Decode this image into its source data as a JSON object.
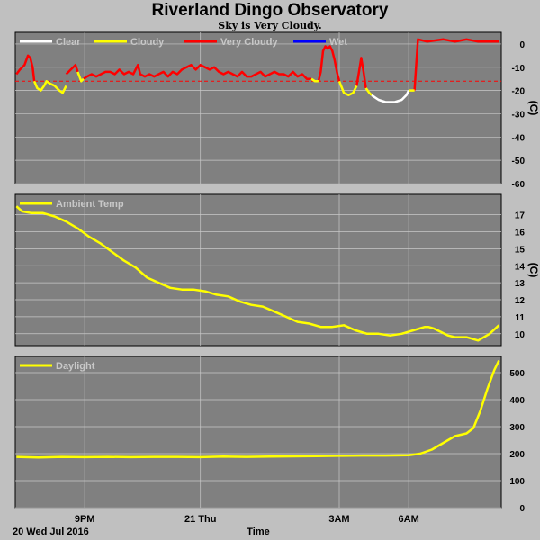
{
  "header": {
    "title": "Riverland Dingo Observatory",
    "subtitle": "Sky is Very Cloudy."
  },
  "footer": {
    "date_label": "20 Wed Jul 2016",
    "x_axis_label": "Time"
  },
  "colors": {
    "background": "#c0c0c0",
    "plot_background": "#808080",
    "grid": "#c8c8c8",
    "clear": "#ffffff",
    "cloudy": "#ffff00",
    "very_cloudy": "#ff0000",
    "wet": "#0000ff"
  },
  "chart_data": [
    {
      "type": "line",
      "name": "sky",
      "legend": [
        "Clear",
        "Cloudy",
        "Very Cloudy",
        "Wet"
      ],
      "ylabel": "(C)",
      "ylim": [
        -60,
        5
      ],
      "yticks": [
        "0",
        "-10",
        "-20",
        "-30",
        "-40",
        "-50",
        "-60"
      ],
      "xticks": [
        "9PM",
        "21 Thu",
        "3AM",
        "6AM"
      ],
      "threshold": -16,
      "series": [
        {
          "name": "Very Cloudy",
          "color": "very_cloudy",
          "segments": [
            [
              [
                0.05,
                -13
              ],
              [
                0.2,
                -11
              ],
              [
                0.4,
                -9
              ],
              [
                0.55,
                -5
              ],
              [
                0.65,
                -6
              ],
              [
                0.75,
                -10
              ],
              [
                0.82,
                -16
              ]
            ],
            [
              [
                2.2,
                -13
              ],
              [
                2.4,
                -11
              ],
              [
                2.6,
                -9
              ],
              [
                2.7,
                -12
              ]
            ],
            [
              [
                2.95,
                -15
              ],
              [
                3.1,
                -14
              ],
              [
                3.3,
                -13
              ],
              [
                3.5,
                -14
              ],
              [
                3.7,
                -13
              ],
              [
                3.9,
                -12
              ],
              [
                4.1,
                -12
              ],
              [
                4.3,
                -13
              ],
              [
                4.5,
                -11
              ],
              [
                4.7,
                -13
              ],
              [
                4.9,
                -12
              ],
              [
                5.1,
                -13
              ],
              [
                5.3,
                -9
              ],
              [
                5.4,
                -13
              ],
              [
                5.6,
                -14
              ],
              [
                5.8,
                -13
              ],
              [
                6.0,
                -14
              ],
              [
                6.2,
                -13
              ],
              [
                6.4,
                -12
              ],
              [
                6.6,
                -14
              ],
              [
                6.8,
                -12
              ],
              [
                7.0,
                -13
              ],
              [
                7.2,
                -11
              ],
              [
                7.4,
                -10
              ],
              [
                7.6,
                -9
              ],
              [
                7.8,
                -11
              ],
              [
                8.0,
                -9
              ],
              [
                8.2,
                -10
              ],
              [
                8.4,
                -11
              ],
              [
                8.6,
                -10
              ],
              [
                8.8,
                -12
              ],
              [
                9.0,
                -13
              ],
              [
                9.2,
                -12
              ],
              [
                9.4,
                -13
              ],
              [
                9.6,
                -14
              ],
              [
                9.8,
                -12
              ],
              [
                10.0,
                -14
              ],
              [
                10.2,
                -14
              ],
              [
                10.4,
                -13
              ],
              [
                10.6,
                -12
              ],
              [
                10.8,
                -14
              ],
              [
                11.0,
                -13
              ],
              [
                11.2,
                -12
              ],
              [
                11.4,
                -13
              ],
              [
                11.6,
                -13
              ],
              [
                11.8,
                -14
              ],
              [
                12.0,
                -12
              ],
              [
                12.2,
                -14
              ],
              [
                12.4,
                -13
              ],
              [
                12.6,
                -15
              ],
              [
                12.8,
                -15
              ]
            ],
            [
              [
                13.1,
                -16
              ],
              [
                13.2,
                -12
              ],
              [
                13.3,
                -3
              ],
              [
                13.4,
                -1
              ],
              [
                13.5,
                -2
              ],
              [
                13.6,
                -1
              ],
              [
                13.7,
                -3
              ],
              [
                13.8,
                -7
              ],
              [
                13.9,
                -12
              ],
              [
                14.0,
                -16
              ]
            ],
            [
              [
                14.75,
                -18
              ],
              [
                14.85,
                -12
              ],
              [
                14.95,
                -6
              ],
              [
                15.05,
                -12
              ],
              [
                15.15,
                -19
              ]
            ],
            [
              [
                17.25,
                -20
              ],
              [
                17.4,
                2
              ],
              [
                17.8,
                1
              ],
              [
                18.5,
                2
              ],
              [
                19.0,
                1
              ],
              [
                19.5,
                2
              ],
              [
                20.0,
                1
              ],
              [
                20.5,
                1
              ],
              [
                20.9,
                1
              ]
            ]
          ]
        },
        {
          "name": "Cloudy",
          "color": "cloudy",
          "segments": [
            [
              [
                0.82,
                -16
              ],
              [
                0.95,
                -19
              ],
              [
                1.1,
                -20
              ],
              [
                1.25,
                -18
              ],
              [
                1.35,
                -16
              ],
              [
                1.5,
                -17
              ],
              [
                1.7,
                -18
              ],
              [
                1.9,
                -20
              ],
              [
                2.05,
                -21
              ],
              [
                2.2,
                -18
              ]
            ],
            [
              [
                2.7,
                -12
              ],
              [
                2.85,
                -16
              ],
              [
                2.95,
                -15
              ]
            ],
            [
              [
                12.8,
                -15
              ],
              [
                12.95,
                -16
              ],
              [
                13.1,
                -16
              ]
            ],
            [
              [
                14.0,
                -16
              ],
              [
                14.2,
                -21
              ],
              [
                14.4,
                -22
              ],
              [
                14.6,
                -21
              ],
              [
                14.75,
                -18
              ]
            ],
            [
              [
                15.15,
                -19
              ],
              [
                15.3,
                -21
              ],
              [
                15.4,
                -22
              ]
            ],
            [
              [
                17.0,
                -20
              ],
              [
                17.25,
                -20
              ]
            ]
          ]
        },
        {
          "name": "Clear",
          "color": "clear",
          "segments": [
            [
              [
                15.4,
                -22
              ],
              [
                15.7,
                -24
              ],
              [
                16.0,
                -25
              ],
              [
                16.4,
                -25
              ],
              [
                16.7,
                -24
              ],
              [
                16.9,
                -22
              ],
              [
                17.0,
                -20
              ]
            ]
          ]
        }
      ]
    },
    {
      "type": "line",
      "name": "temperature",
      "legend": [
        "Ambient Temp"
      ],
      "ylabel": "(C)",
      "ylim": [
        9.3,
        18.2
      ],
      "yticks": [
        "17",
        "16",
        "15",
        "14",
        "13",
        "12",
        "11",
        "10"
      ],
      "xticks": [
        "9PM",
        "21 Thu",
        "3AM",
        "6AM"
      ],
      "series": [
        {
          "name": "Ambient Temp",
          "color": "cloudy",
          "x": [
            0.05,
            0.3,
            0.7,
            1.2,
            1.7,
            2.2,
            2.7,
            3.2,
            3.7,
            4.2,
            4.7,
            5.2,
            5.7,
            6.2,
            6.7,
            7.2,
            7.7,
            8.2,
            8.7,
            9.2,
            9.7,
            10.2,
            10.7,
            11.2,
            11.7,
            12.2,
            12.7,
            13.2,
            13.7,
            14.2,
            14.7,
            15.2,
            15.7,
            16.2,
            16.7,
            17.2,
            17.7,
            17.85,
            18.1,
            18.4,
            18.7,
            19.0,
            19.5,
            20.0,
            20.5,
            20.9
          ],
          "values": [
            17.5,
            17.2,
            17.1,
            17.1,
            16.9,
            16.6,
            16.2,
            15.7,
            15.3,
            14.8,
            14.3,
            13.9,
            13.3,
            13.0,
            12.7,
            12.6,
            12.6,
            12.5,
            12.3,
            12.2,
            11.9,
            11.7,
            11.6,
            11.3,
            11.0,
            10.7,
            10.6,
            10.4,
            10.4,
            10.5,
            10.2,
            10.0,
            10.0,
            9.9,
            10.0,
            10.2,
            10.4,
            10.4,
            10.3,
            10.1,
            9.9,
            9.8,
            9.8,
            9.6,
            10.0,
            10.5
          ]
        }
      ]
    },
    {
      "type": "line",
      "name": "daylight",
      "legend": [
        "Daylight"
      ],
      "ylabel": "",
      "ylim": [
        0,
        560
      ],
      "yticks": [
        "500",
        "400",
        "300",
        "200",
        "100",
        "0"
      ],
      "xticks": [
        "9PM",
        "21 Thu",
        "3AM",
        "6AM"
      ],
      "series": [
        {
          "name": "Daylight",
          "color": "cloudy",
          "x": [
            0.05,
            1,
            2,
            3,
            4,
            5,
            6,
            7,
            8,
            9,
            10,
            11,
            12,
            13,
            14,
            15,
            16,
            17,
            17.5,
            18,
            18.5,
            19,
            19.5,
            19.8,
            20.1,
            20.4,
            20.7,
            20.9
          ],
          "values": [
            188,
            186,
            188,
            187,
            188,
            187,
            188,
            188,
            187,
            189,
            188,
            189,
            190,
            191,
            192,
            193,
            193,
            194,
            200,
            215,
            240,
            265,
            275,
            295,
            360,
            440,
            510,
            545
          ]
        }
      ]
    }
  ]
}
